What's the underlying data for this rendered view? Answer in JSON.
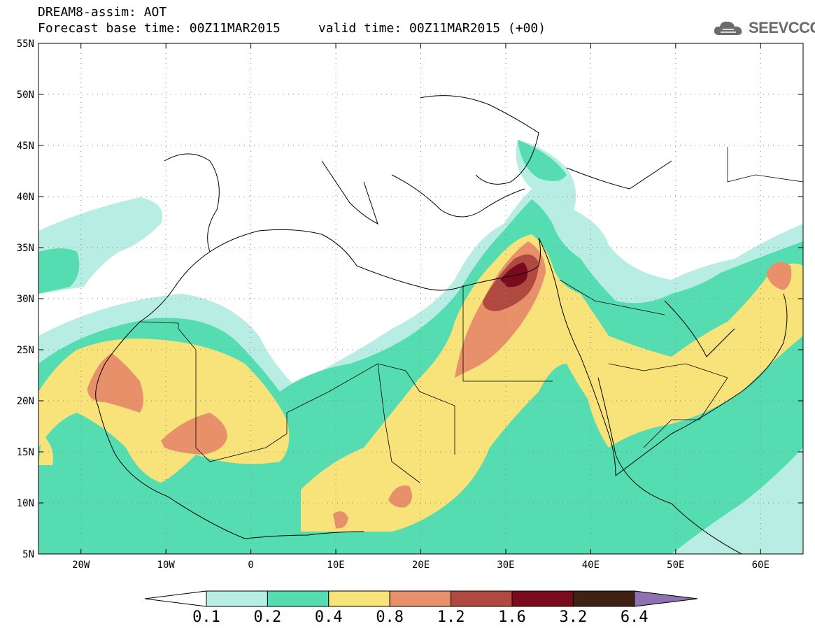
{
  "title": {
    "line1": "DREAM8-assim: AOT",
    "line2": "Forecast base time: 00Z11MAR2015     valid time: 00Z11MAR2015 (+00)"
  },
  "logo": {
    "text": "SEEVCCC",
    "icon": "cloud-icon"
  },
  "map": {
    "lon_range": [
      -25,
      65
    ],
    "lat_range": [
      5,
      55
    ],
    "lat_ticks": [
      "55N",
      "50N",
      "45N",
      "40N",
      "35N",
      "30N",
      "25N",
      "20N",
      "15N",
      "10N",
      "5N"
    ],
    "lon_ticks": [
      "20W",
      "10W",
      "0",
      "10E",
      "20E",
      "30E",
      "40E",
      "50E",
      "60E"
    ],
    "grid": "dotted"
  },
  "colorbar": {
    "labels": [
      "0.1",
      "0.2",
      "0.4",
      "0.8",
      "1.2",
      "1.6",
      "3.2",
      "6.4"
    ],
    "colors": [
      "#ffffff",
      "#b7ede3",
      "#55dcb0",
      "#f7e37a",
      "#e8906a",
      "#b04a40",
      "#7a0a1e",
      "#3f2215",
      "#8e72b0"
    ]
  },
  "palette": {
    "aot_0_1_0_2": "#b7ede3",
    "aot_0_2_0_4": "#55dcb0",
    "aot_0_4_0_8": "#f7e37a",
    "aot_0_8_1_2": "#e8906a",
    "aot_1_2_1_6": "#b04a40",
    "aot_1_6_3_2": "#7a0a1e"
  }
}
